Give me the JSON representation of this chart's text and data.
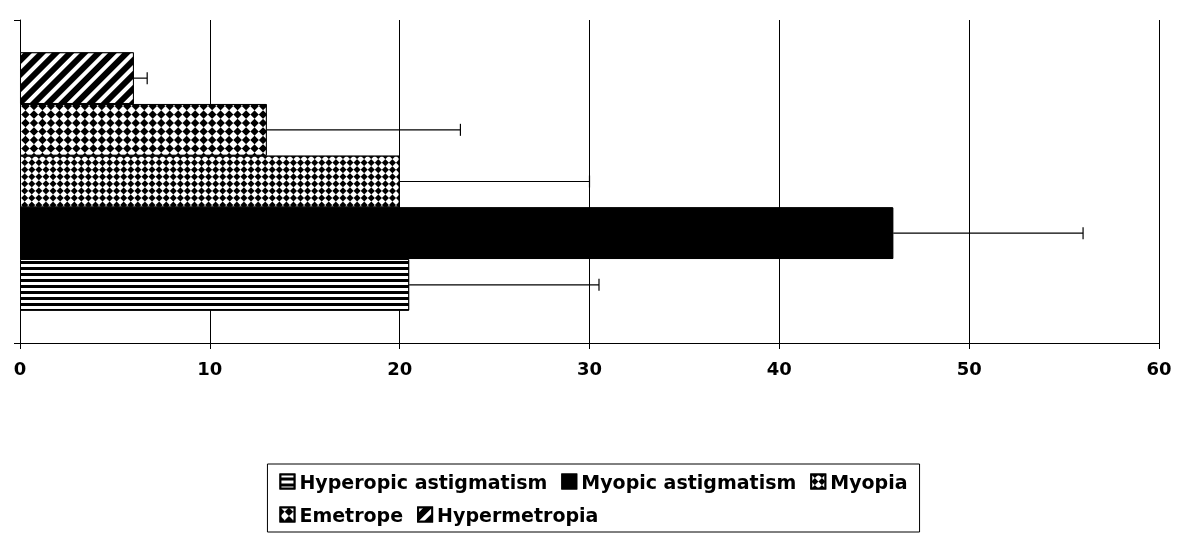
{
  "chart_data": {
    "type": "bar",
    "orientation": "horizontal",
    "categories": [
      null
    ],
    "series": [
      {
        "name": "Hyperopic astigmatism",
        "color": "#000000",
        "values": [
          20.5
        ],
        "errors": [
          [
            20.5,
            30.5
          ]
        ]
      },
      {
        "name": "Myopic astigmatism",
        "color": "#000000",
        "values": [
          46
        ],
        "errors": [
          [
            46,
            56
          ]
        ]
      },
      {
        "name": "Myopia",
        "color": "#000000",
        "values": [
          20
        ],
        "errors": [
          [
            20,
            30
          ]
        ]
      },
      {
        "name": "Emetrope",
        "color": "#000000",
        "values": [
          13
        ],
        "errors": [
          [
            13,
            23.2
          ]
        ]
      },
      {
        "name": "Hypermetropia",
        "color": "#000000",
        "values": [
          6
        ],
        "errors": [
          [
            6,
            6.7
          ]
        ]
      }
    ],
    "xlim": [
      0,
      60
    ],
    "xticks": [
      0,
      10,
      20,
      30,
      40,
      50,
      60
    ],
    "grid": "x",
    "legend": "bottom"
  }
}
